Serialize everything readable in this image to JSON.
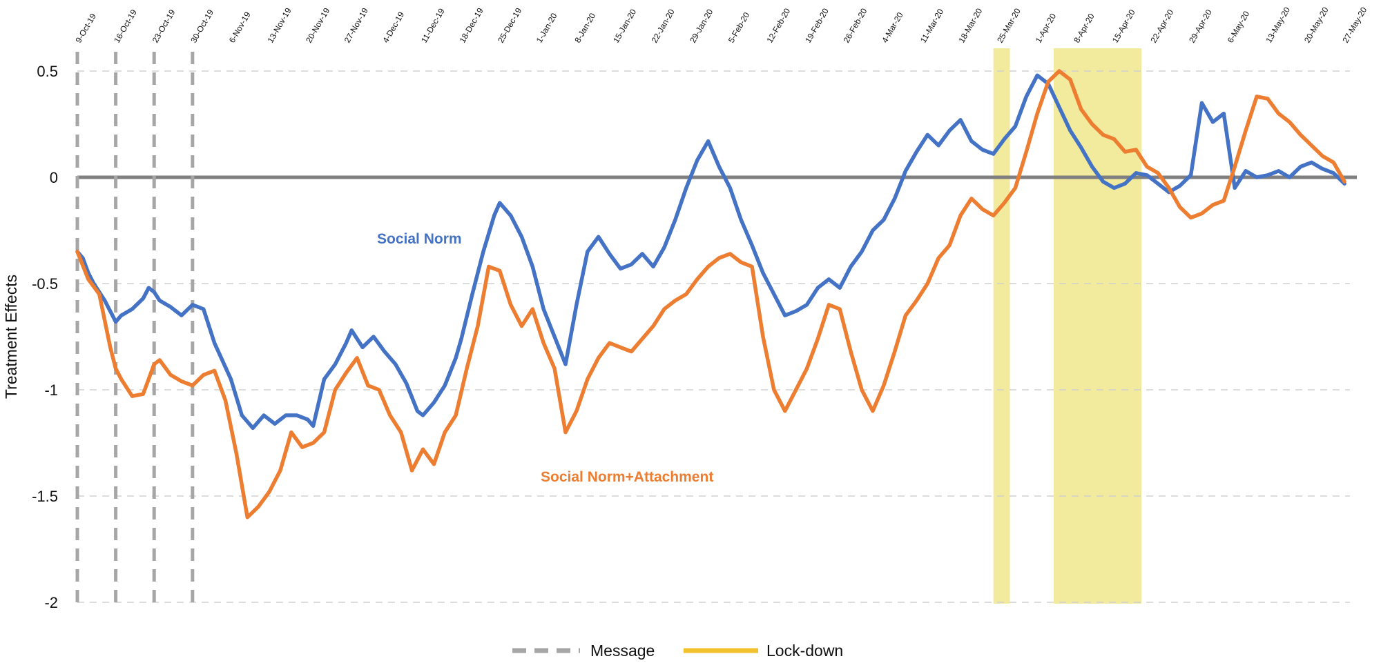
{
  "chart_data": {
    "type": "line",
    "ylabel": "Treatment Effects",
    "ylim": [
      -2,
      0.5
    ],
    "yticks": [
      0.5,
      0,
      -0.5,
      -1,
      -1.5,
      -2
    ],
    "ytick_labels": [
      "0.5",
      "0",
      "-0.5",
      "-1",
      "-1.5",
      "-2"
    ],
    "grid": true,
    "x_tick_labels": [
      "9-Oct-19",
      "16-Oct-19",
      "23-Oct-19",
      "30-Oct-19",
      "6-Nov-19",
      "13-Nov-19",
      "20-Nov-19",
      "27-Nov-19",
      "4-Dec-19",
      "11-Dec-19",
      "18-Dec-19",
      "25-Dec-19",
      "1-Jan-20",
      "8-Jan-20",
      "15-Jan-20",
      "22-Jan-20",
      "29-Jan-20",
      "5-Feb-20",
      "12-Feb-20",
      "19-Feb-20",
      "26-Feb-20",
      "4-Mar-20",
      "11-Mar-20",
      "18-Mar-20",
      "25-Mar-20",
      "1-Apr-20",
      "8-Apr-20",
      "15-Apr-20",
      "22-Apr-20",
      "29-Apr-20",
      "6-May-20",
      "13-May-20",
      "20-May-20",
      "27-May-20"
    ],
    "message_dates": [
      "2019-10-09",
      "2019-10-16",
      "2019-10-23",
      "2019-10-30"
    ],
    "lockdown_periods": [
      [
        "2020-03-24",
        "2020-03-27"
      ],
      [
        "2020-04-04",
        "2020-04-20"
      ]
    ],
    "baseline": 0,
    "series": [
      {
        "name": "Social Norm",
        "color": "#4472c4",
        "x": [
          "2019-10-09",
          "2019-10-10",
          "2019-10-11",
          "2019-10-12",
          "2019-10-14",
          "2019-10-16",
          "2019-10-17",
          "2019-10-19",
          "2019-10-21",
          "2019-10-22",
          "2019-10-23",
          "2019-10-24",
          "2019-10-26",
          "2019-10-28",
          "2019-10-30",
          "2019-11-01",
          "2019-11-03",
          "2019-11-06",
          "2019-11-08",
          "2019-11-10",
          "2019-11-12",
          "2019-11-14",
          "2019-11-16",
          "2019-11-18",
          "2019-11-20",
          "2019-11-21",
          "2019-11-23",
          "2019-11-25",
          "2019-11-27",
          "2019-11-28",
          "2019-11-30",
          "2019-12-02",
          "2019-12-04",
          "2019-12-06",
          "2019-12-08",
          "2019-12-10",
          "2019-12-11",
          "2019-12-13",
          "2019-12-15",
          "2019-12-17",
          "2019-12-18",
          "2019-12-20",
          "2019-12-22",
          "2019-12-24",
          "2019-12-25",
          "2019-12-27",
          "2019-12-29",
          "2019-12-31",
          "2020-01-02",
          "2020-01-04",
          "2020-01-06",
          "2020-01-08",
          "2020-01-10",
          "2020-01-12",
          "2020-01-14",
          "2020-01-16",
          "2020-01-18",
          "2020-01-20",
          "2020-01-22",
          "2020-01-24",
          "2020-01-26",
          "2020-01-28",
          "2020-01-30",
          "2020-02-01",
          "2020-02-03",
          "2020-02-05",
          "2020-02-07",
          "2020-02-09",
          "2020-02-11",
          "2020-02-13",
          "2020-02-15",
          "2020-02-17",
          "2020-02-19",
          "2020-02-21",
          "2020-02-23",
          "2020-02-25",
          "2020-02-27",
          "2020-02-29",
          "2020-03-02",
          "2020-03-04",
          "2020-03-06",
          "2020-03-08",
          "2020-03-10",
          "2020-03-12",
          "2020-03-14",
          "2020-03-16",
          "2020-03-18",
          "2020-03-20",
          "2020-03-22",
          "2020-03-24",
          "2020-03-26",
          "2020-03-28",
          "2020-03-30",
          "2020-04-01",
          "2020-04-03",
          "2020-04-05",
          "2020-04-07",
          "2020-04-09",
          "2020-04-11",
          "2020-04-13",
          "2020-04-15",
          "2020-04-17",
          "2020-04-19",
          "2020-04-21",
          "2020-04-23",
          "2020-04-25",
          "2020-04-27",
          "2020-04-29",
          "2020-05-01",
          "2020-05-03",
          "2020-05-05",
          "2020-05-07",
          "2020-05-09",
          "2020-05-11",
          "2020-05-13",
          "2020-05-15",
          "2020-05-17",
          "2020-05-19",
          "2020-05-21",
          "2020-05-23",
          "2020-05-25",
          "2020-05-27"
        ],
        "values": [
          -0.35,
          -0.38,
          -0.45,
          -0.5,
          -0.58,
          -0.68,
          -0.65,
          -0.62,
          -0.57,
          -0.52,
          -0.54,
          -0.58,
          -0.61,
          -0.65,
          -0.6,
          -0.62,
          -0.78,
          -0.95,
          -1.12,
          -1.18,
          -1.12,
          -1.16,
          -1.12,
          -1.12,
          -1.14,
          -1.17,
          -0.95,
          -0.88,
          -0.78,
          -0.72,
          -0.8,
          -0.75,
          -0.82,
          -0.88,
          -0.97,
          -1.1,
          -1.12,
          -1.06,
          -0.98,
          -0.85,
          -0.76,
          -0.55,
          -0.35,
          -0.18,
          -0.12,
          -0.18,
          -0.28,
          -0.42,
          -0.62,
          -0.75,
          -0.88,
          -0.6,
          -0.35,
          -0.28,
          -0.36,
          -0.43,
          -0.41,
          -0.36,
          -0.42,
          -0.33,
          -0.2,
          -0.05,
          0.08,
          0.17,
          0.05,
          -0.05,
          -0.2,
          -0.32,
          -0.45,
          -0.55,
          -0.65,
          -0.63,
          -0.6,
          -0.52,
          -0.48,
          -0.52,
          -0.42,
          -0.35,
          -0.25,
          -0.2,
          -0.1,
          0.03,
          0.12,
          0.2,
          0.15,
          0.22,
          0.27,
          0.17,
          0.13,
          0.11,
          0.18,
          0.24,
          0.38,
          0.48,
          0.44,
          0.33,
          0.22,
          0.14,
          0.05,
          -0.02,
          -0.05,
          -0.03,
          0.02,
          0.01,
          -0.03,
          -0.07,
          -0.04,
          0.01,
          0.35,
          0.26,
          0.3,
          -0.05,
          0.03,
          0.0,
          0.01,
          0.03,
          0.0,
          0.05,
          0.07,
          0.04,
          0.02,
          -0.03
        ]
      },
      {
        "name": "Social Norm+Attachment",
        "color": "#ed7d31",
        "x": [
          "2019-10-09",
          "2019-10-11",
          "2019-10-13",
          "2019-10-15",
          "2019-10-16",
          "2019-10-17",
          "2019-10-19",
          "2019-10-21",
          "2019-10-22",
          "2019-10-23",
          "2019-10-24",
          "2019-10-26",
          "2019-10-28",
          "2019-10-30",
          "2019-11-01",
          "2019-11-03",
          "2019-11-05",
          "2019-11-07",
          "2019-11-09",
          "2019-11-11",
          "2019-11-13",
          "2019-11-15",
          "2019-11-17",
          "2019-11-19",
          "2019-11-21",
          "2019-11-23",
          "2019-11-25",
          "2019-11-27",
          "2019-11-29",
          "2019-12-01",
          "2019-12-03",
          "2019-12-05",
          "2019-12-07",
          "2019-12-09",
          "2019-12-11",
          "2019-12-13",
          "2019-12-15",
          "2019-12-17",
          "2019-12-19",
          "2019-12-21",
          "2019-12-23",
          "2019-12-25",
          "2019-12-27",
          "2019-12-29",
          "2019-12-31",
          "2020-01-02",
          "2020-01-04",
          "2020-01-06",
          "2020-01-08",
          "2020-01-10",
          "2020-01-12",
          "2020-01-14",
          "2020-01-16",
          "2020-01-18",
          "2020-01-20",
          "2020-01-22",
          "2020-01-24",
          "2020-01-26",
          "2020-01-28",
          "2020-01-30",
          "2020-02-01",
          "2020-02-03",
          "2020-02-05",
          "2020-02-07",
          "2020-02-09",
          "2020-02-11",
          "2020-02-13",
          "2020-02-15",
          "2020-02-17",
          "2020-02-19",
          "2020-02-21",
          "2020-02-23",
          "2020-02-25",
          "2020-02-27",
          "2020-02-29",
          "2020-03-02",
          "2020-03-04",
          "2020-03-06",
          "2020-03-08",
          "2020-03-10",
          "2020-03-12",
          "2020-03-14",
          "2020-03-16",
          "2020-03-18",
          "2020-03-20",
          "2020-03-22",
          "2020-03-24",
          "2020-03-26",
          "2020-03-28",
          "2020-03-30",
          "2020-04-01",
          "2020-04-03",
          "2020-04-05",
          "2020-04-07",
          "2020-04-09",
          "2020-04-11",
          "2020-04-13",
          "2020-04-15",
          "2020-04-17",
          "2020-04-19",
          "2020-04-21",
          "2020-04-23",
          "2020-04-25",
          "2020-04-27",
          "2020-04-29",
          "2020-05-01",
          "2020-05-03",
          "2020-05-05",
          "2020-05-07",
          "2020-05-09",
          "2020-05-11",
          "2020-05-13",
          "2020-05-15",
          "2020-05-17",
          "2020-05-19",
          "2020-05-21",
          "2020-05-23",
          "2020-05-25",
          "2020-05-27"
        ],
        "values": [
          -0.35,
          -0.48,
          -0.55,
          -0.8,
          -0.9,
          -0.95,
          -1.03,
          -1.02,
          -0.95,
          -0.88,
          -0.86,
          -0.93,
          -0.96,
          -0.98,
          -0.93,
          -0.91,
          -1.05,
          -1.3,
          -1.6,
          -1.55,
          -1.48,
          -1.38,
          -1.2,
          -1.27,
          -1.25,
          -1.2,
          -1.0,
          -0.92,
          -0.85,
          -0.98,
          -1.0,
          -1.12,
          -1.2,
          -1.38,
          -1.28,
          -1.35,
          -1.2,
          -1.12,
          -0.9,
          -0.7,
          -0.42,
          -0.44,
          -0.6,
          -0.7,
          -0.62,
          -0.78,
          -0.9,
          -1.2,
          -1.1,
          -0.95,
          -0.85,
          -0.78,
          -0.8,
          -0.82,
          -0.76,
          -0.7,
          -0.62,
          -0.58,
          -0.55,
          -0.48,
          -0.42,
          -0.38,
          -0.36,
          -0.4,
          -0.42,
          -0.75,
          -1.0,
          -1.1,
          -1.0,
          -0.9,
          -0.76,
          -0.6,
          -0.62,
          -0.82,
          -1.0,
          -1.1,
          -0.98,
          -0.82,
          -0.65,
          -0.58,
          -0.5,
          -0.38,
          -0.32,
          -0.18,
          -0.1,
          -0.15,
          -0.18,
          -0.12,
          -0.05,
          0.12,
          0.3,
          0.45,
          0.5,
          0.46,
          0.32,
          0.25,
          0.2,
          0.18,
          0.12,
          0.13,
          0.05,
          0.02,
          -0.05,
          -0.14,
          -0.19,
          -0.17,
          -0.13,
          -0.11,
          0.05,
          0.22,
          0.38,
          0.37,
          0.3,
          0.26,
          0.2,
          0.15,
          0.1,
          0.07,
          -0.02
        ]
      }
    ],
    "annotations": [
      {
        "text": "Social Norm",
        "series": 0
      },
      {
        "text": "Social Norm+Attachment",
        "series": 1
      }
    ],
    "legend": {
      "position": "bottom-center",
      "entries": [
        {
          "label": "Message",
          "style": "dashed-gray",
          "color": "#a6a6a6"
        },
        {
          "label": "Lock-down",
          "style": "solid-yellow",
          "color": "#f0e48c"
        }
      ]
    }
  }
}
